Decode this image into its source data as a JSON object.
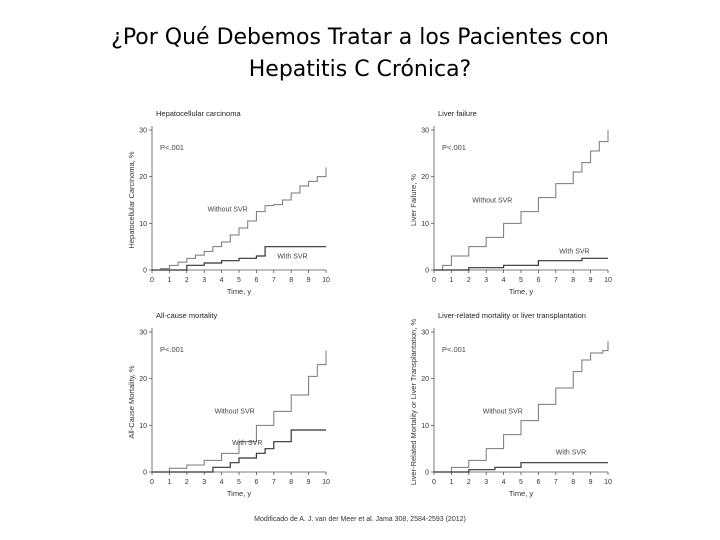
{
  "slide": {
    "title_line1": "¿Por Qué Debemos Tratar a los Pacientes con",
    "title_line2": "Hepatitis C Crónica?",
    "footer": "Modificado de A. J. van der Meer et al. Jama 308, 2584-2593 (2012)"
  },
  "chart_data": [
    {
      "type": "line",
      "title": "Hepatocellular carcinoma",
      "ylabel": "Hepatocellular Carcinoma, %",
      "xlabel": "Time, y",
      "pvalue": "P<.001",
      "xlim": [
        0,
        10
      ],
      "ylim": [
        0,
        30
      ],
      "xticks": [
        0,
        1,
        2,
        3,
        4,
        5,
        6,
        7,
        8,
        9,
        10
      ],
      "yticks": [
        0,
        10,
        20,
        30
      ],
      "series": [
        {
          "name": "Without SVR",
          "points": [
            [
              0,
              0
            ],
            [
              0.5,
              0.3
            ],
            [
              1,
              1
            ],
            [
              1.5,
              1.7
            ],
            [
              2,
              2.5
            ],
            [
              2.5,
              3.2
            ],
            [
              3,
              4
            ],
            [
              3.5,
              5
            ],
            [
              4,
              6
            ],
            [
              4.5,
              7.5
            ],
            [
              5,
              9
            ],
            [
              5.5,
              10.5
            ],
            [
              6,
              12.5
            ],
            [
              6.5,
              13.8
            ],
            [
              7,
              14
            ],
            [
              7.5,
              15
            ],
            [
              8,
              16.5
            ],
            [
              8.5,
              18
            ],
            [
              9,
              19
            ],
            [
              9.5,
              20
            ],
            [
              10,
              22
            ]
          ],
          "label_at": [
            3.2,
            12.5
          ]
        },
        {
          "name": "With SVR",
          "points": [
            [
              0,
              0
            ],
            [
              1,
              0
            ],
            [
              2,
              1
            ],
            [
              3,
              1.5
            ],
            [
              4,
              2
            ],
            [
              5,
              2.5
            ],
            [
              6,
              3
            ],
            [
              6.5,
              3
            ],
            [
              6.5,
              5
            ],
            [
              10,
              5
            ]
          ],
          "label_at": [
            7.2,
            2.5
          ]
        }
      ]
    },
    {
      "type": "line",
      "title": "Liver failure",
      "ylabel": "Liver Failure, %",
      "xlabel": "Time, y",
      "pvalue": "P<.001",
      "xlim": [
        0,
        10
      ],
      "ylim": [
        0,
        30
      ],
      "xticks": [
        0,
        1,
        2,
        3,
        4,
        5,
        6,
        7,
        8,
        9,
        10
      ],
      "yticks": [
        0,
        10,
        20,
        30
      ],
      "series": [
        {
          "name": "Without SVR",
          "points": [
            [
              0,
              0
            ],
            [
              0.5,
              1
            ],
            [
              1,
              3
            ],
            [
              2,
              5
            ],
            [
              3,
              7
            ],
            [
              4,
              10
            ],
            [
              5,
              12.5
            ],
            [
              6,
              15.5
            ],
            [
              7,
              18.5
            ],
            [
              8,
              21
            ],
            [
              8.5,
              23
            ],
            [
              9,
              25.5
            ],
            [
              9.5,
              27.5
            ],
            [
              10,
              30
            ]
          ],
          "label_at": [
            2.2,
            14.5
          ]
        },
        {
          "name": "With SVR",
          "points": [
            [
              0,
              0
            ],
            [
              2,
              0.5
            ],
            [
              4,
              1
            ],
            [
              6,
              1.5
            ],
            [
              6,
              2
            ],
            [
              8.5,
              2
            ],
            [
              8.5,
              2.5
            ],
            [
              10,
              2.5
            ]
          ],
          "label_at": [
            7.2,
            3.5
          ]
        }
      ]
    },
    {
      "type": "line",
      "title": "All-cause mortality",
      "ylabel": "All-Cause Mortality, %",
      "xlabel": "Time, y",
      "pvalue": "P<.001",
      "xlim": [
        0,
        10
      ],
      "ylim": [
        0,
        30
      ],
      "xticks": [
        0,
        1,
        2,
        3,
        4,
        5,
        6,
        7,
        8,
        9,
        10
      ],
      "yticks": [
        0,
        10,
        20,
        30
      ],
      "series": [
        {
          "name": "Without SVR",
          "points": [
            [
              0,
              0
            ],
            [
              1,
              0.8
            ],
            [
              2,
              1.5
            ],
            [
              3,
              2.5
            ],
            [
              4,
              4
            ],
            [
              5,
              6.5
            ],
            [
              6,
              10
            ],
            [
              7,
              13
            ],
            [
              8,
              16.5
            ],
            [
              9,
              20.5
            ],
            [
              9.5,
              23
            ],
            [
              10,
              26
            ]
          ],
          "label_at": [
            3.6,
            12.5
          ]
        },
        {
          "name": "With SVR",
          "points": [
            [
              0,
              0
            ],
            [
              3,
              0
            ],
            [
              3.5,
              1
            ],
            [
              4.5,
              2
            ],
            [
              5,
              3
            ],
            [
              6,
              4
            ],
            [
              6.5,
              5
            ],
            [
              7,
              6.5
            ],
            [
              8,
              7.5
            ],
            [
              8,
              9
            ],
            [
              10,
              9
            ]
          ],
          "label_at": [
            4.6,
            5.8
          ]
        }
      ]
    },
    {
      "type": "line",
      "title": "Liver-related mortality or liver transplantation",
      "ylabel": "Liver-Related Mortality or Liver Transplantation, %",
      "xlabel": "Time, y",
      "pvalue": "P<.001",
      "xlim": [
        0,
        10
      ],
      "ylim": [
        0,
        30
      ],
      "xticks": [
        0,
        1,
        2,
        3,
        4,
        5,
        6,
        7,
        8,
        9,
        10
      ],
      "yticks": [
        0,
        10,
        20,
        30
      ],
      "series": [
        {
          "name": "Without SVR",
          "points": [
            [
              0,
              0
            ],
            [
              1,
              1
            ],
            [
              2,
              2.5
            ],
            [
              3,
              5
            ],
            [
              4,
              8
            ],
            [
              5,
              11
            ],
            [
              6,
              14.5
            ],
            [
              7,
              18
            ],
            [
              8,
              21.5
            ],
            [
              8.5,
              24
            ],
            [
              9,
              25.5
            ],
            [
              9.7,
              26
            ],
            [
              10,
              28
            ]
          ],
          "label_at": [
            2.8,
            12.5
          ]
        },
        {
          "name": "With SVR",
          "points": [
            [
              0,
              0
            ],
            [
              2,
              0.5
            ],
            [
              3.5,
              1
            ],
            [
              5,
              1.5
            ],
            [
              5,
              2
            ],
            [
              7.5,
              2
            ],
            [
              10,
              2
            ]
          ],
          "label_at": [
            7.0,
            3.8
          ]
        }
      ]
    }
  ]
}
